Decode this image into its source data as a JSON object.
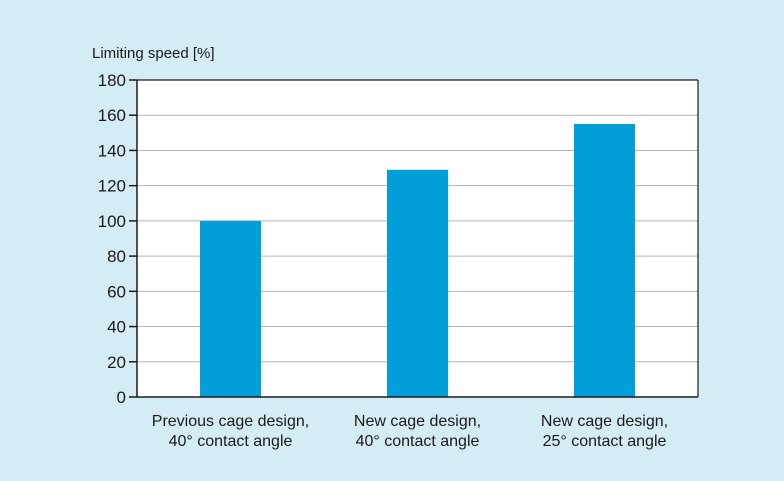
{
  "chart_data": {
    "type": "bar",
    "title": "",
    "xlabel": "",
    "ylabel": "Limiting speed [%]",
    "ylim": [
      0,
      180
    ],
    "yticks": [
      0,
      20,
      40,
      60,
      80,
      100,
      120,
      140,
      160,
      180
    ],
    "grid": true,
    "categories": [
      [
        "Previous cage design,",
        "40° contact angle"
      ],
      [
        "New cage design,",
        "40° contact angle"
      ],
      [
        "New cage design,",
        "25° contact angle"
      ]
    ],
    "values": [
      100,
      129,
      155
    ],
    "colors": {
      "background": "#d4edf4",
      "plot_area": "#ffffff",
      "bar": "#009fda",
      "gridline": "#b5b5b5",
      "axis": "#1a1a1a"
    }
  }
}
